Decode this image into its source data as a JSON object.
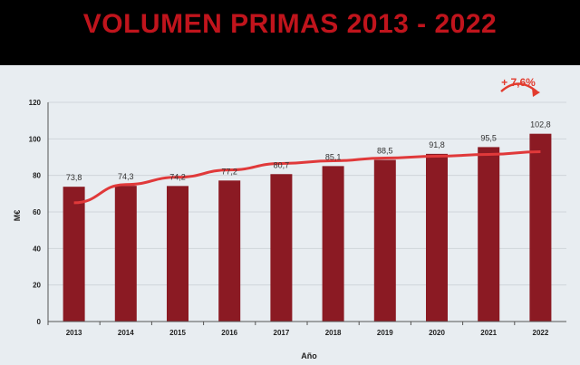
{
  "chart_data": {
    "type": "bar",
    "title": "VOLUMEN PRIMAS 2013 - 2022",
    "xlabel": "Año",
    "ylabel": "M€",
    "categories": [
      "2013",
      "2014",
      "2015",
      "2016",
      "2017",
      "2018",
      "2019",
      "2020",
      "2021",
      "2022"
    ],
    "values": [
      73.8,
      74.3,
      74.2,
      77.2,
      80.7,
      85.1,
      88.5,
      91.8,
      95.5,
      102.8
    ],
    "value_labels": [
      "73,8",
      "74,3",
      "74,2",
      "77,2",
      "80,7",
      "85,1",
      "88,5",
      "91,8",
      "95,5",
      "102,8"
    ],
    "trend": [
      65,
      75,
      79,
      83,
      86.5,
      88,
      89.5,
      90.5,
      91.5,
      93
    ],
    "ylim": [
      0,
      120
    ],
    "yticks": [
      0,
      20,
      40,
      60,
      80,
      100,
      120
    ],
    "annotation": "+ 7,6%",
    "grid": true,
    "colors": {
      "bar": "#8b1a23",
      "trend": "#e0393a",
      "annotation": "#e23b2e",
      "title": "#c0141c",
      "background": "#e8edf1"
    }
  }
}
